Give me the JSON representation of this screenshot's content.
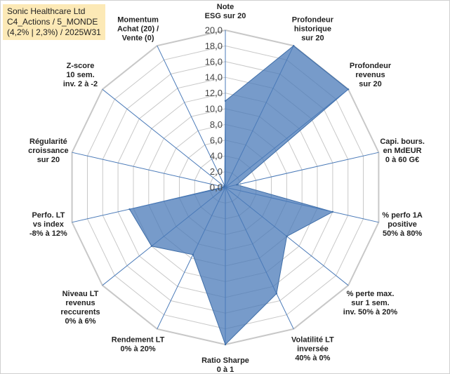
{
  "title_lines": [
    "Sonic Healthcare Ltd",
    "C4_Actions / 5_MONDE",
    "(4,2% | 2,3%) / 2025W31"
  ],
  "colors": {
    "fill": "#4a7ab8",
    "stroke": "#3f6ea8",
    "grid": "#c8c8c8",
    "axis": "#4a7ab8",
    "title_bg": "#fce9b6"
  },
  "chart_data": {
    "type": "radar",
    "rmin": 0,
    "rmax": 20,
    "tick_labels": [
      "0,0",
      "2,0",
      "4,0",
      "6,0",
      "8,0",
      "10,0",
      "12,0",
      "14,0",
      "16,0",
      "18,0",
      "20,0"
    ],
    "axes": [
      {
        "label": [
          "Note",
          "ESG sur 20"
        ],
        "value": 11
      },
      {
        "label": [
          "Profondeur",
          "historique",
          "sur 20"
        ],
        "value": 20
      },
      {
        "label": [
          "Profondeur",
          "revenus",
          "sur 20"
        ],
        "value": 20
      },
      {
        "label": [
          "Capi. bours.",
          "en MdEUR",
          "0 à 60 G€"
        ],
        "value": 1.5
      },
      {
        "label": [
          "% perfo 1A",
          "positive",
          "50% à 80%"
        ],
        "value": 14
      },
      {
        "label": [
          "% perte max.",
          "sur 1 sem.",
          "inv. 50% à 20%"
        ],
        "value": 10
      },
      {
        "label": [
          "Volatilité LT",
          "inversée",
          "40% à 0%"
        ],
        "value": 15
      },
      {
        "label": [
          "Ratio Sharpe",
          "0 à 1"
        ],
        "value": 20
      },
      {
        "label": [
          "Rendement LT",
          "0% à 20%"
        ],
        "value": 9.5
      },
      {
        "label": [
          "Niveau LT",
          "revenus",
          "reccurents",
          "0% à 6%"
        ],
        "value": 12
      },
      {
        "label": [
          "Perfo. LT",
          "vs index",
          "-8% à 12%"
        ],
        "value": 12.5
      },
      {
        "label": [
          "Régularité",
          "croissance",
          "sur 20"
        ],
        "value": 0.2
      },
      {
        "label": [
          "Z-score",
          "10 sem.",
          "inv. 2 à -2"
        ],
        "value": 0.2
      },
      {
        "label": [
          "Momentum",
          "Achat (20) /",
          "Vente (0)"
        ],
        "value": 0.2
      }
    ]
  }
}
